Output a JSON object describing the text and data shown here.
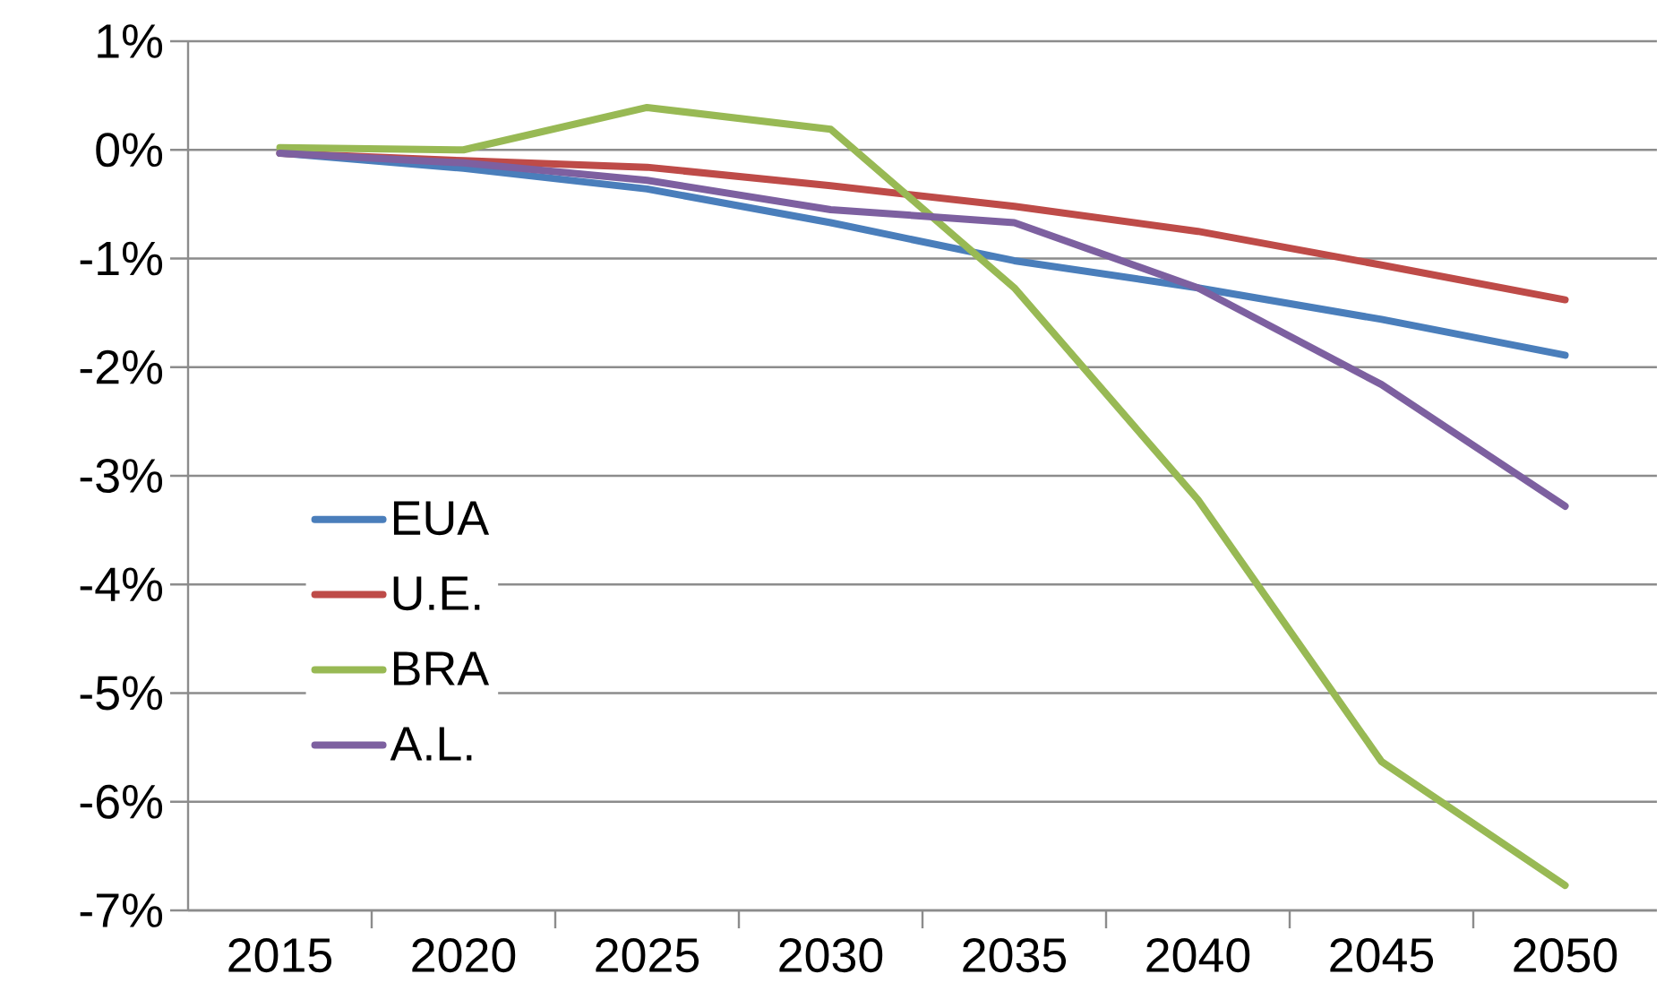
{
  "chart_data": {
    "type": "line",
    "categories": [
      "2015",
      "2020",
      "2025",
      "2030",
      "2035",
      "2040",
      "2045",
      "2050"
    ],
    "series": [
      {
        "name": "EUA",
        "color": "#4a7ebb",
        "values": [
          -0.03,
          -0.17,
          -0.36,
          -0.67,
          -1.02,
          -1.27,
          -1.56,
          -1.89
        ]
      },
      {
        "name": "U.E.",
        "color": "#be4b48",
        "values": [
          -0.03,
          -0.1,
          -0.16,
          -0.33,
          -0.52,
          -0.75,
          -1.06,
          -1.38
        ]
      },
      {
        "name": "BRA",
        "color": "#98b954",
        "values": [
          0.02,
          0.0,
          0.39,
          0.19,
          -1.27,
          -3.22,
          -5.63,
          -6.77
        ]
      },
      {
        "name": "A.L.",
        "color": "#7d60a0",
        "values": [
          -0.03,
          -0.12,
          -0.28,
          -0.55,
          -0.67,
          -1.27,
          -2.16,
          -3.28
        ]
      }
    ],
    "ylim": [
      -7,
      1
    ],
    "yticks": [
      {
        "value": -7,
        "label": "-7%"
      },
      {
        "value": -6,
        "label": "-6%"
      },
      {
        "value": -5,
        "label": "-5%"
      },
      {
        "value": -4,
        "label": "-4%"
      },
      {
        "value": -3,
        "label": "-3%"
      },
      {
        "value": -2,
        "label": "-2%"
      },
      {
        "value": -1,
        "label": "-1%"
      },
      {
        "value": 0,
        "label": "0%"
      },
      {
        "value": 1,
        "label": "1%"
      }
    ],
    "grid": "y",
    "legend": "left",
    "marker": "none",
    "line_style": "solid"
  }
}
